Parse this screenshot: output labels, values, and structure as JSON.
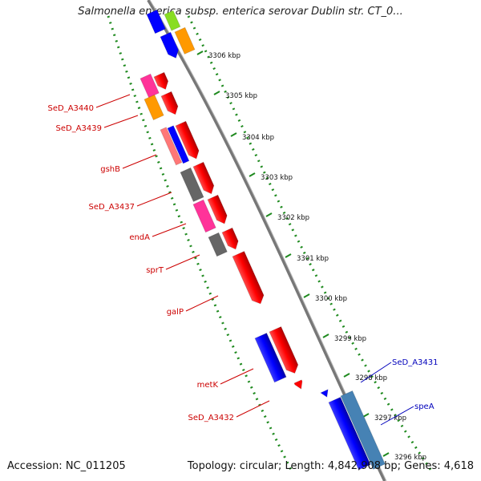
{
  "title": "Salmonella enterica subsp. enterica serovar Dublin str. CT_0...",
  "footer": {
    "accession": "Accession: NC_011205",
    "summary": "Topology: circular; Length: 4,842,908 bp; Genes: 4,618"
  },
  "colors": {
    "backbone": "#7a7a7a",
    "scale_dots": "#1f8a1f",
    "label_red": "#cc0000",
    "label_blue": "#0000bb",
    "gene_red": "#ff0000",
    "gene_blue": "#0000ff",
    "gene_pink": "#ff3399",
    "gene_orange": "#ff9900",
    "gene_gray": "#666666",
    "gene_salmon": "#ff7777",
    "gene_steel": "#4682b4",
    "gene_green": "#88dd22"
  },
  "scale_labels": [
    "3306 kbp",
    "3305 kbp",
    "3304 kbp",
    "3303 kbp",
    "3302 kbp",
    "3301 kbp",
    "3300 kbp",
    "3299 kbp",
    "3298 kbp",
    "3297 kbp",
    "3296 kbp"
  ],
  "gene_labels": [
    {
      "text": "SeD_A3440",
      "color": "red"
    },
    {
      "text": "SeD_A3439",
      "color": "red"
    },
    {
      "text": "gshB",
      "color": "red"
    },
    {
      "text": "SeD_A3437",
      "color": "red"
    },
    {
      "text": "endA",
      "color": "red"
    },
    {
      "text": "sprT",
      "color": "red"
    },
    {
      "text": "galP",
      "color": "red"
    },
    {
      "text": "metK",
      "color": "red"
    },
    {
      "text": "SeD_A3432",
      "color": "red"
    },
    {
      "text": "SeD_A3431",
      "color": "blue"
    },
    {
      "text": "speA",
      "color": "blue"
    }
  ]
}
